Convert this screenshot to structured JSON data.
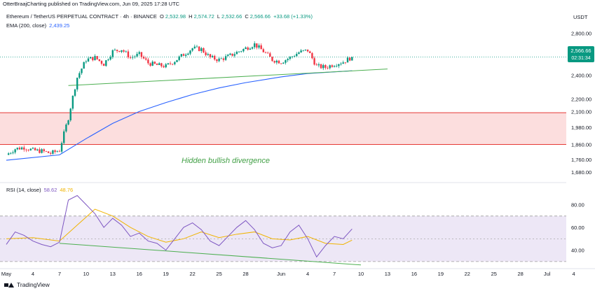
{
  "header": {
    "publisher": "OtterBraajCharting published on TradingView.com, Jun 09, 2025 17:28 UTC"
  },
  "symbol": {
    "name": "Ethereum / TetherUS PERPETUAL CONTRACT · 4h · BINANCE",
    "open_label": "O",
    "open": "2,532.98",
    "high_label": "H",
    "high": "2,574.72",
    "low_label": "L",
    "low": "2,532.66",
    "close_label": "C",
    "close": "2,566.66",
    "change": "+33.68 (+1.33%)"
  },
  "ema": {
    "label": "EMA (200, close)",
    "value": "2,439.25"
  },
  "rsi": {
    "label": "RSI (14, close)",
    "value": "58.62",
    "ma_value": "48.76"
  },
  "currency": "USDT",
  "price_badge": {
    "price": "2,566.66",
    "countdown": "02:31:34"
  },
  "annotation": "Hidden bullish divergence",
  "footer": {
    "brand": "TradingView"
  },
  "colors": {
    "up": "#089981",
    "down": "#f23645",
    "ema": "#2962ff",
    "rsi": "#7e57c2",
    "rsi_ma": "#f0b400",
    "trendline": "#4caf50",
    "zone_fill": "#fcdede",
    "zone_border": "#e53935",
    "rsi_band": "#ede7f6"
  },
  "chart_data": [
    {
      "type": "candlestick",
      "title": "Ethereum / TetherUS PERPETUAL CONTRACT · 4h · BINANCE",
      "y_ticks": [
        "2,800.00",
        "2,600.00",
        "2,400.00",
        "2,200.00",
        "2,100.00",
        "1,980.00",
        "1,860.00",
        "1,760.00",
        "1,680.00"
      ],
      "y_tick_values": [
        2800,
        2600,
        2400,
        2200,
        2100,
        1980,
        1860,
        1760,
        1680
      ],
      "y_scale": "log",
      "ylim": [
        1650,
        2870
      ],
      "x_ticks": [
        "May",
        "4",
        "7",
        "10",
        "13",
        "16",
        "19",
        "22",
        "25",
        "28",
        "Jun",
        "4",
        "7",
        "10",
        "13",
        "16",
        "19",
        "22",
        "25",
        "28",
        "Jul",
        "4"
      ],
      "close_path": [
        {
          "x": "May 1",
          "y": 1790
        },
        {
          "x": "May 2",
          "y": 1830
        },
        {
          "x": "May 3",
          "y": 1840
        },
        {
          "x": "May 4",
          "y": 1820
        },
        {
          "x": "May 5",
          "y": 1815
        },
        {
          "x": "May 6",
          "y": 1800
        },
        {
          "x": "May 7",
          "y": 1820
        },
        {
          "x": "May 8",
          "y": 2050
        },
        {
          "x": "May 9",
          "y": 2380
        },
        {
          "x": "May 10",
          "y": 2540
        },
        {
          "x": "May 11",
          "y": 2560
        },
        {
          "x": "May 12",
          "y": 2500
        },
        {
          "x": "May 13",
          "y": 2620
        },
        {
          "x": "May 14",
          "y": 2640
        },
        {
          "x": "May 15",
          "y": 2560
        },
        {
          "x": "May 16",
          "y": 2590
        },
        {
          "x": "May 17",
          "y": 2510
        },
        {
          "x": "May 18",
          "y": 2490
        },
        {
          "x": "May 19",
          "y": 2480
        },
        {
          "x": "May 20",
          "y": 2530
        },
        {
          "x": "May 21",
          "y": 2590
        },
        {
          "x": "May 22",
          "y": 2650
        },
        {
          "x": "May 23",
          "y": 2640
        },
        {
          "x": "May 24",
          "y": 2560
        },
        {
          "x": "May 25",
          "y": 2540
        },
        {
          "x": "May 26",
          "y": 2570
        },
        {
          "x": "May 27",
          "y": 2610
        },
        {
          "x": "May 28",
          "y": 2650
        },
        {
          "x": "May 29",
          "y": 2690
        },
        {
          "x": "May 30",
          "y": 2620
        },
        {
          "x": "May 31",
          "y": 2540
        },
        {
          "x": "Jun 1",
          "y": 2520
        },
        {
          "x": "Jun 2",
          "y": 2560
        },
        {
          "x": "Jun 3",
          "y": 2610
        },
        {
          "x": "Jun 4",
          "y": 2630
        },
        {
          "x": "Jun 5",
          "y": 2480
        },
        {
          "x": "Jun 6",
          "y": 2470
        },
        {
          "x": "Jun 7",
          "y": 2500
        },
        {
          "x": "Jun 8",
          "y": 2520
        },
        {
          "x": "Jun 9",
          "y": 2566.66
        }
      ],
      "ema_200": [
        {
          "x": "May 1",
          "y": 1755
        },
        {
          "x": "May 7",
          "y": 1790
        },
        {
          "x": "May 10",
          "y": 1900
        },
        {
          "x": "May 13",
          "y": 2010
        },
        {
          "x": "May 16",
          "y": 2100
        },
        {
          "x": "May 19",
          "y": 2170
        },
        {
          "x": "May 22",
          "y": 2235
        },
        {
          "x": "May 25",
          "y": 2290
        },
        {
          "x": "May 28",
          "y": 2335
        },
        {
          "x": "Jun 1",
          "y": 2385
        },
        {
          "x": "Jun 4",
          "y": 2415
        },
        {
          "x": "Jun 9",
          "y": 2439.25
        }
      ],
      "support_trendline": [
        {
          "x": "May 8",
          "y": 2310
        },
        {
          "x": "Jun 13",
          "y": 2455
        }
      ],
      "zone": {
        "low": 1860,
        "high": 2090
      }
    },
    {
      "type": "line",
      "title": "RSI (14, close)",
      "y_ticks": [
        "80.00",
        "60.00",
        "40.00"
      ],
      "y_tick_values": [
        80,
        60,
        40
      ],
      "ylim": [
        25,
        92
      ],
      "band": [
        30,
        70
      ],
      "series": [
        {
          "name": "RSI (14, close)",
          "values": [
            {
              "x": "May 1",
              "y": 45
            },
            {
              "x": "May 2",
              "y": 56
            },
            {
              "x": "May 3",
              "y": 53
            },
            {
              "x": "May 4",
              "y": 48
            },
            {
              "x": "May 5",
              "y": 45
            },
            {
              "x": "May 6",
              "y": 43
            },
            {
              "x": "May 7",
              "y": 47
            },
            {
              "x": "May 8",
              "y": 84
            },
            {
              "x": "May 9",
              "y": 88
            },
            {
              "x": "May 10",
              "y": 80
            },
            {
              "x": "May 11",
              "y": 72
            },
            {
              "x": "May 12",
              "y": 60
            },
            {
              "x": "May 13",
              "y": 68
            },
            {
              "x": "May 14",
              "y": 62
            },
            {
              "x": "May 15",
              "y": 52
            },
            {
              "x": "May 16",
              "y": 55
            },
            {
              "x": "May 17",
              "y": 48
            },
            {
              "x": "May 18",
              "y": 46
            },
            {
              "x": "May 19",
              "y": 40
            },
            {
              "x": "May 20",
              "y": 50
            },
            {
              "x": "May 21",
              "y": 60
            },
            {
              "x": "May 22",
              "y": 64
            },
            {
              "x": "May 23",
              "y": 58
            },
            {
              "x": "May 24",
              "y": 48
            },
            {
              "x": "May 25",
              "y": 44
            },
            {
              "x": "May 26",
              "y": 52
            },
            {
              "x": "May 27",
              "y": 60
            },
            {
              "x": "May 28",
              "y": 66
            },
            {
              "x": "May 29",
              "y": 58
            },
            {
              "x": "May 30",
              "y": 46
            },
            {
              "x": "May 31",
              "y": 42
            },
            {
              "x": "Jun 1",
              "y": 44
            },
            {
              "x": "Jun 2",
              "y": 56
            },
            {
              "x": "Jun 3",
              "y": 62
            },
            {
              "x": "Jun 4",
              "y": 50
            },
            {
              "x": "Jun 5",
              "y": 34
            },
            {
              "x": "Jun 6",
              "y": 44
            },
            {
              "x": "Jun 7",
              "y": 52
            },
            {
              "x": "Jun 8",
              "y": 50
            },
            {
              "x": "Jun 9",
              "y": 58.62
            }
          ]
        },
        {
          "name": "RSI-based MA",
          "values": [
            {
              "x": "May 1",
              "y": 50
            },
            {
              "x": "May 4",
              "y": 51
            },
            {
              "x": "May 7",
              "y": 48
            },
            {
              "x": "May 9",
              "y": 62
            },
            {
              "x": "May 11",
              "y": 76
            },
            {
              "x": "May 13",
              "y": 70
            },
            {
              "x": "May 15",
              "y": 60
            },
            {
              "x": "May 17",
              "y": 52
            },
            {
              "x": "May 19",
              "y": 47
            },
            {
              "x": "May 21",
              "y": 50
            },
            {
              "x": "May 23",
              "y": 56
            },
            {
              "x": "May 25",
              "y": 51
            },
            {
              "x": "May 27",
              "y": 54
            },
            {
              "x": "May 29",
              "y": 56
            },
            {
              "x": "May 31",
              "y": 50
            },
            {
              "x": "Jun 2",
              "y": 49
            },
            {
              "x": "Jun 4",
              "y": 52
            },
            {
              "x": "Jun 6",
              "y": 46
            },
            {
              "x": "Jun 8",
              "y": 45
            },
            {
              "x": "Jun 9",
              "y": 48.76
            }
          ]
        }
      ],
      "divergence_line": [
        {
          "x": "May 7",
          "y": 46
        },
        {
          "x": "Jun 10",
          "y": 27
        }
      ]
    }
  ]
}
